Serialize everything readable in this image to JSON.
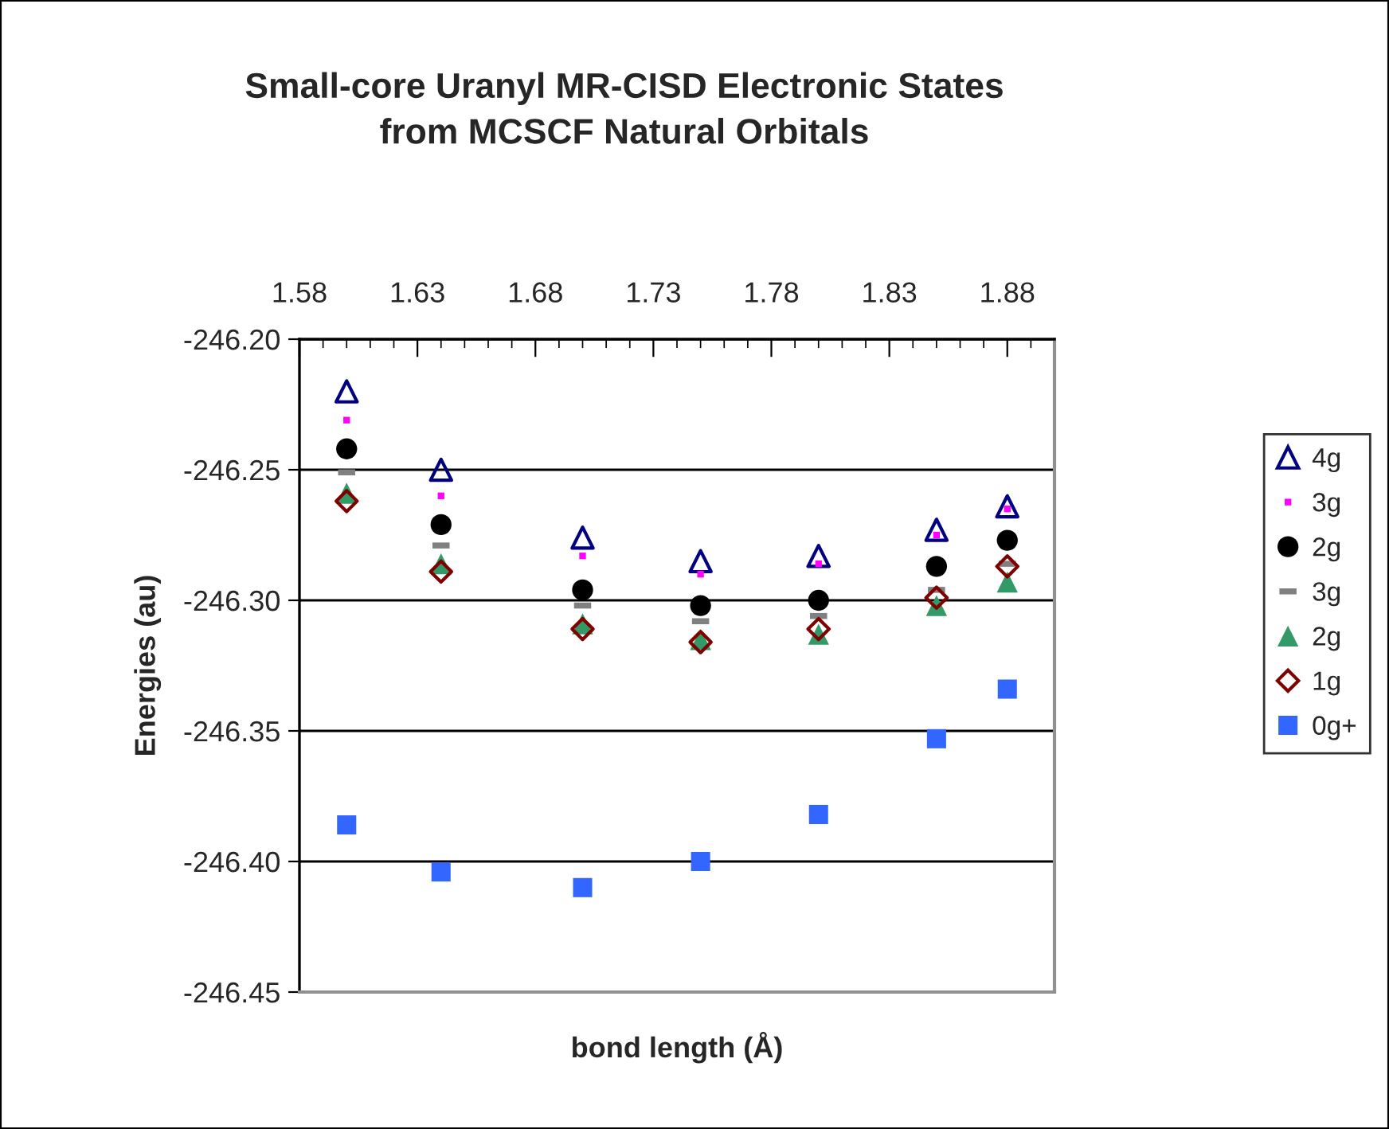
{
  "chart_data": {
    "type": "scatter",
    "title": "Small-core Uranyl MR-CISD Electronic States\nfrom MCSCF Natural Orbitals",
    "xlabel": "bond length (Å)",
    "ylabel": "Energies (au)",
    "x": [
      1.6,
      1.64,
      1.7,
      1.75,
      1.8,
      1.85,
      1.88
    ],
    "series": [
      {
        "name": "4g",
        "color": "#000080",
        "marker": "triangle",
        "values": [
          -246.22,
          -246.25,
          -246.276,
          -246.285,
          -246.283,
          -246.273,
          -246.264
        ]
      },
      {
        "name": "3g",
        "color": "#ff00ff",
        "marker": "square",
        "values": [
          -246.231,
          -246.26,
          -246.283,
          -246.29,
          -246.286,
          -246.275,
          -246.265
        ]
      },
      {
        "name": "2g",
        "color": "#000000",
        "marker": "circle",
        "values": [
          -246.242,
          -246.271,
          -246.296,
          -246.302,
          -246.3,
          -246.287,
          -246.277
        ]
      },
      {
        "name": "3g",
        "color": "#808080",
        "marker": "square",
        "values": [
          -246.251,
          -246.279,
          -246.302,
          -246.308,
          -246.306,
          -246.296,
          -246.286
        ]
      },
      {
        "name": "2g",
        "color": "#339966",
        "marker": "triangle",
        "values": [
          -246.259,
          -246.286,
          -246.309,
          -246.315,
          -246.313,
          -246.302,
          -246.293
        ]
      },
      {
        "name": "1g",
        "color": "#800000",
        "marker": "diamond",
        "values": [
          -246.262,
          -246.289,
          -246.311,
          -246.316,
          -246.311,
          -246.299,
          -246.287
        ]
      },
      {
        "name": "0g+",
        "color": "#3366ff",
        "marker": "square",
        "values": [
          -246.386,
          -246.404,
          -246.41,
          -246.4,
          -246.382,
          -246.353,
          -246.334
        ]
      }
    ],
    "xlim": [
      1.58,
      1.9
    ],
    "xticks": [
      1.58,
      {
        "value": 1.59,
        "label": null
      },
      {
        "value": 1.6,
        "label": null
      },
      {
        "value": 1.61,
        "label": null
      },
      {
        "value": 1.62,
        "label": null
      },
      1.63,
      {
        "value": 1.64,
        "label": null
      },
      {
        "value": 1.65,
        "label": null
      },
      {
        "value": 1.66,
        "label": null
      },
      {
        "value": 1.67,
        "label": null
      },
      1.68,
      {
        "value": 1.69,
        "label": null
      },
      {
        "value": 1.7,
        "label": null
      },
      {
        "value": 1.71,
        "label": null
      },
      {
        "value": 1.72,
        "label": null
      },
      1.73,
      {
        "value": 1.74,
        "label": null
      },
      {
        "value": 1.75,
        "label": null
      },
      {
        "value": 1.76,
        "label": null
      },
      {
        "value": 1.77,
        "label": null
      },
      1.78,
      {
        "value": 1.79,
        "label": null
      },
      {
        "value": 1.8,
        "label": null
      },
      {
        "value": 1.81,
        "label": null
      },
      {
        "value": 1.82,
        "label": null
      },
      1.83,
      {
        "value": 1.84,
        "label": null
      },
      {
        "value": 1.85,
        "label": null
      },
      {
        "value": 1.86,
        "label": null
      },
      {
        "value": 1.87,
        "label": null
      },
      1.88,
      {
        "value": 1.89,
        "label": null
      },
      {
        "value": 1.9,
        "label": null
      }
    ],
    "ylim": [
      -246.45,
      -246.2
    ],
    "yticks": [
      {
        "value": -246.45,
        "label": "-246.45"
      },
      {
        "value": -246.4,
        "label": "-246.40"
      },
      {
        "value": -246.35,
        "label": "-246.35"
      },
      {
        "value": -246.3,
        "label": "-246.30"
      },
      {
        "value": -246.25,
        "label": "-246.25"
      },
      {
        "value": -246.2,
        "label": "-246.20"
      }
    ],
    "grid": "y",
    "legend": "right"
  }
}
